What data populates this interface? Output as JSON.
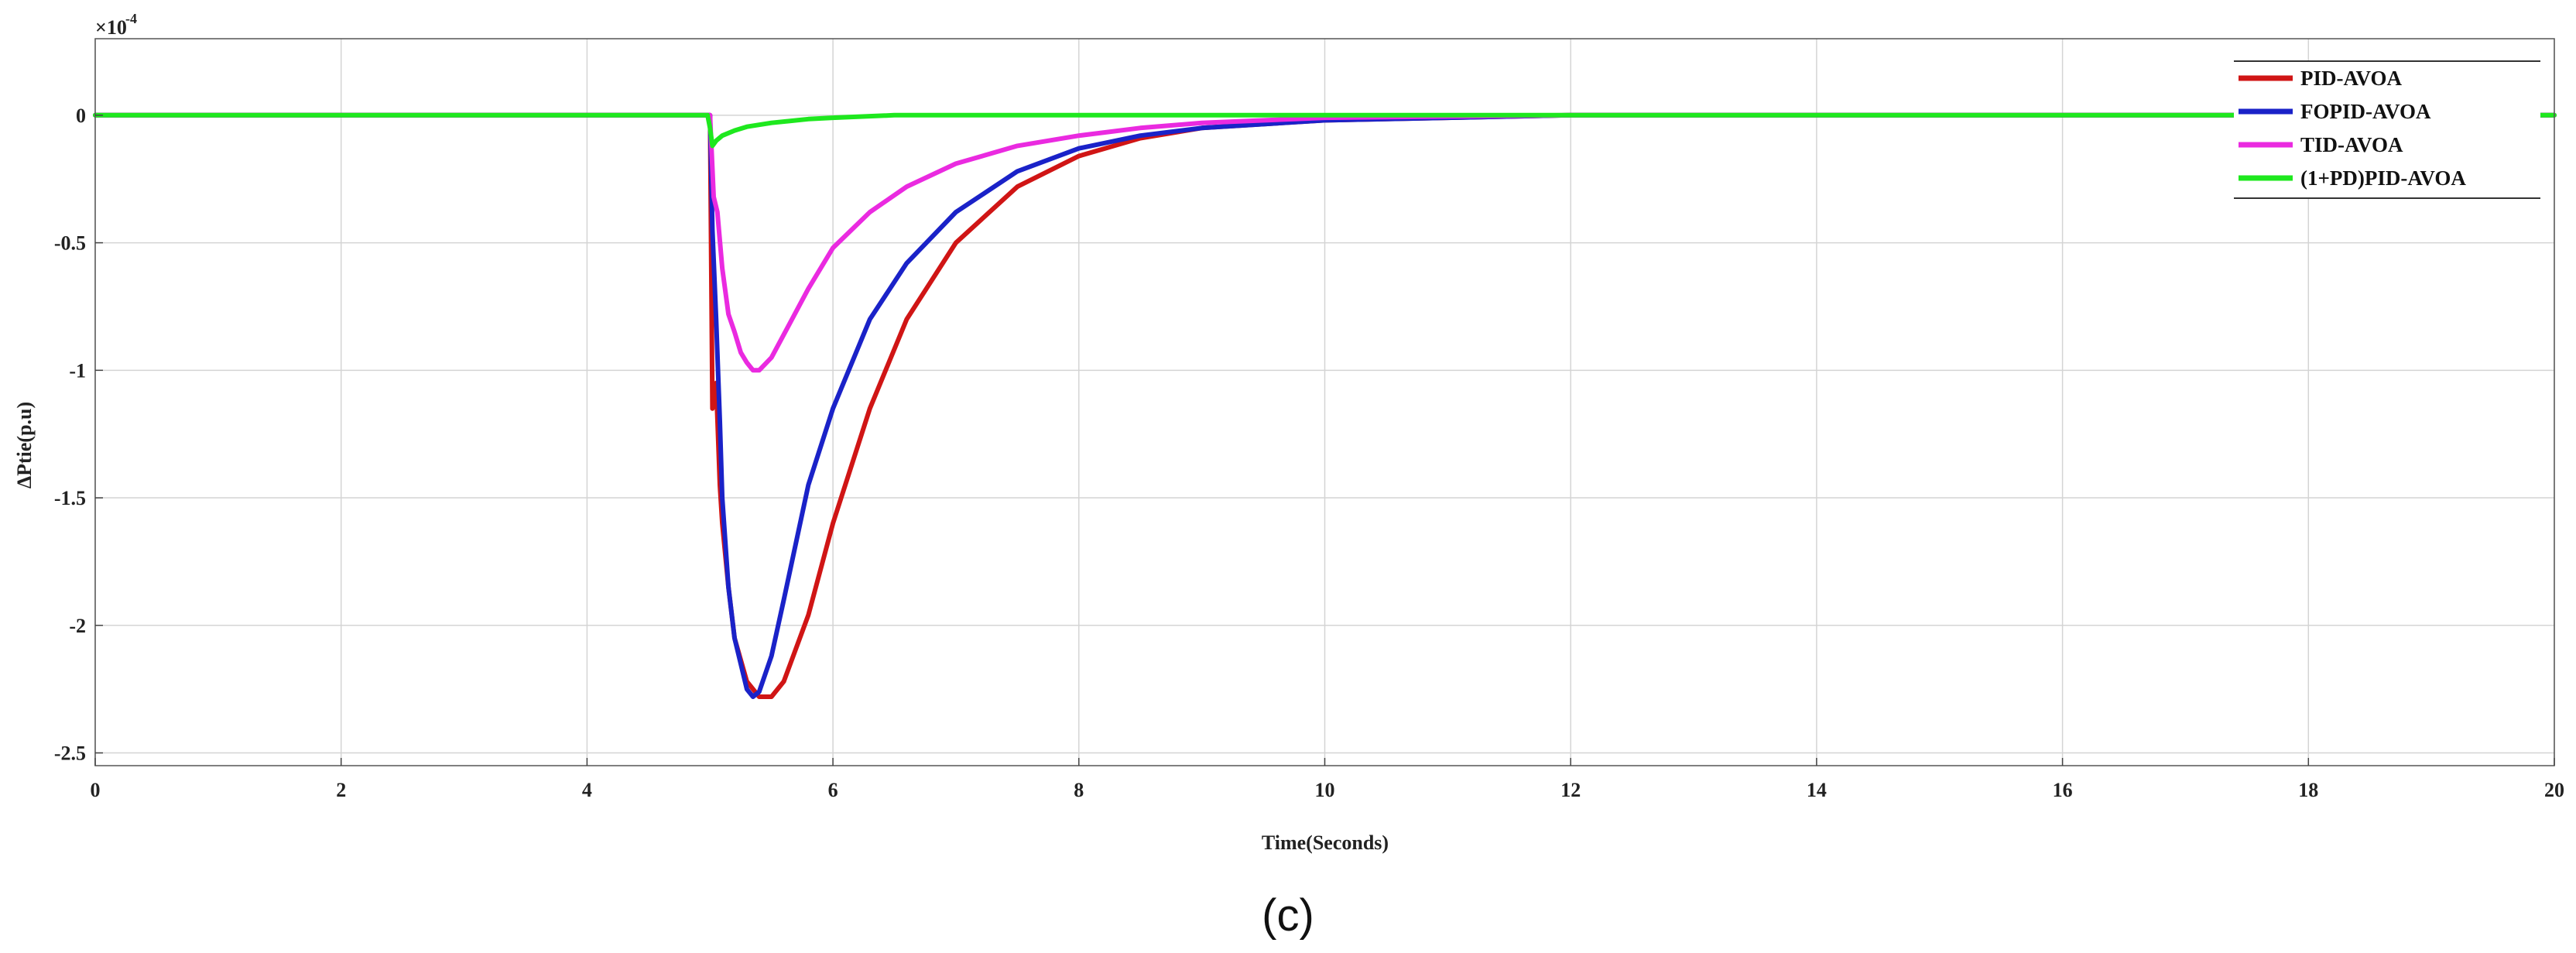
{
  "chart_data": {
    "type": "line",
    "title": "",
    "xlabel": "Time(Seconds)",
    "ylabel": "ΔPtie(p.u)",
    "y_exponent_label": "×10",
    "y_exponent_power": "-4",
    "xlim": [
      0,
      20
    ],
    "ylim": [
      -2.55,
      0.3
    ],
    "x_ticks": [
      0,
      2,
      4,
      6,
      8,
      10,
      12,
      14,
      16,
      18,
      20
    ],
    "x_tick_labels": [
      "0",
      "2",
      "4",
      "6",
      "8",
      "10",
      "12",
      "14",
      "16",
      "18",
      "20"
    ],
    "y_ticks": [
      0,
      -0.5,
      -1,
      -1.5,
      -2,
      -2.5
    ],
    "y_tick_labels": [
      "0",
      "-0.5",
      "-1",
      "-1.5",
      "-2",
      "-2.5"
    ],
    "grid": true,
    "legend_position": "top-right",
    "caption": "(c)",
    "series": [
      {
        "name": "PID-AVOA",
        "color": "#d01515",
        "x": [
          0,
          5.0,
          5.02,
          5.05,
          5.08,
          5.1,
          5.15,
          5.2,
          5.3,
          5.4,
          5.5,
          5.6,
          5.8,
          6.0,
          6.3,
          6.6,
          7.0,
          7.5,
          8.0,
          8.5,
          9.0,
          10.0,
          12.0,
          20.0
        ],
        "values": [
          0,
          0,
          -1.15,
          -1.05,
          -1.45,
          -1.6,
          -1.85,
          -2.05,
          -2.22,
          -2.28,
          -2.28,
          -2.22,
          -1.96,
          -1.6,
          -1.15,
          -0.8,
          -0.5,
          -0.28,
          -0.16,
          -0.09,
          -0.05,
          -0.02,
          0,
          0
        ]
      },
      {
        "name": "FOPID-AVOA",
        "color": "#1a22c8",
        "x": [
          0,
          5.0,
          5.02,
          5.05,
          5.08,
          5.1,
          5.15,
          5.2,
          5.3,
          5.35,
          5.4,
          5.5,
          5.6,
          5.8,
          6.0,
          6.3,
          6.6,
          7.0,
          7.5,
          8.0,
          8.5,
          9.0,
          10.0,
          12.0,
          20.0
        ],
        "values": [
          0,
          0,
          -0.45,
          -0.8,
          -1.2,
          -1.5,
          -1.85,
          -2.05,
          -2.25,
          -2.28,
          -2.26,
          -2.12,
          -1.9,
          -1.45,
          -1.15,
          -0.8,
          -0.58,
          -0.38,
          -0.22,
          -0.13,
          -0.08,
          -0.05,
          -0.02,
          0,
          0
        ]
      },
      {
        "name": "TID-AVOA",
        "color": "#ea2ae0",
        "x": [
          0,
          5.0,
          5.03,
          5.06,
          5.1,
          5.15,
          5.2,
          5.25,
          5.3,
          5.35,
          5.4,
          5.5,
          5.6,
          5.8,
          6.0,
          6.3,
          6.6,
          7.0,
          7.5,
          8.0,
          8.5,
          9.0,
          10.0,
          12.0,
          20.0
        ],
        "values": [
          0,
          0,
          -0.32,
          -0.38,
          -0.6,
          -0.78,
          -0.85,
          -0.93,
          -0.97,
          -1.0,
          -1.0,
          -0.95,
          -0.86,
          -0.68,
          -0.52,
          -0.38,
          -0.28,
          -0.19,
          -0.12,
          -0.08,
          -0.05,
          -0.03,
          -0.01,
          0,
          0
        ]
      },
      {
        "name": "(1+PD)PID-AVOA",
        "color": "#1ee81e",
        "x": [
          0,
          4.98,
          5.0,
          5.02,
          5.05,
          5.1,
          5.2,
          5.3,
          5.5,
          5.8,
          6.0,
          6.5,
          8.0,
          20.0
        ],
        "values": [
          0,
          0,
          -0.05,
          -0.12,
          -0.1,
          -0.08,
          -0.06,
          -0.045,
          -0.03,
          -0.015,
          -0.01,
          0,
          0,
          0
        ]
      }
    ]
  }
}
